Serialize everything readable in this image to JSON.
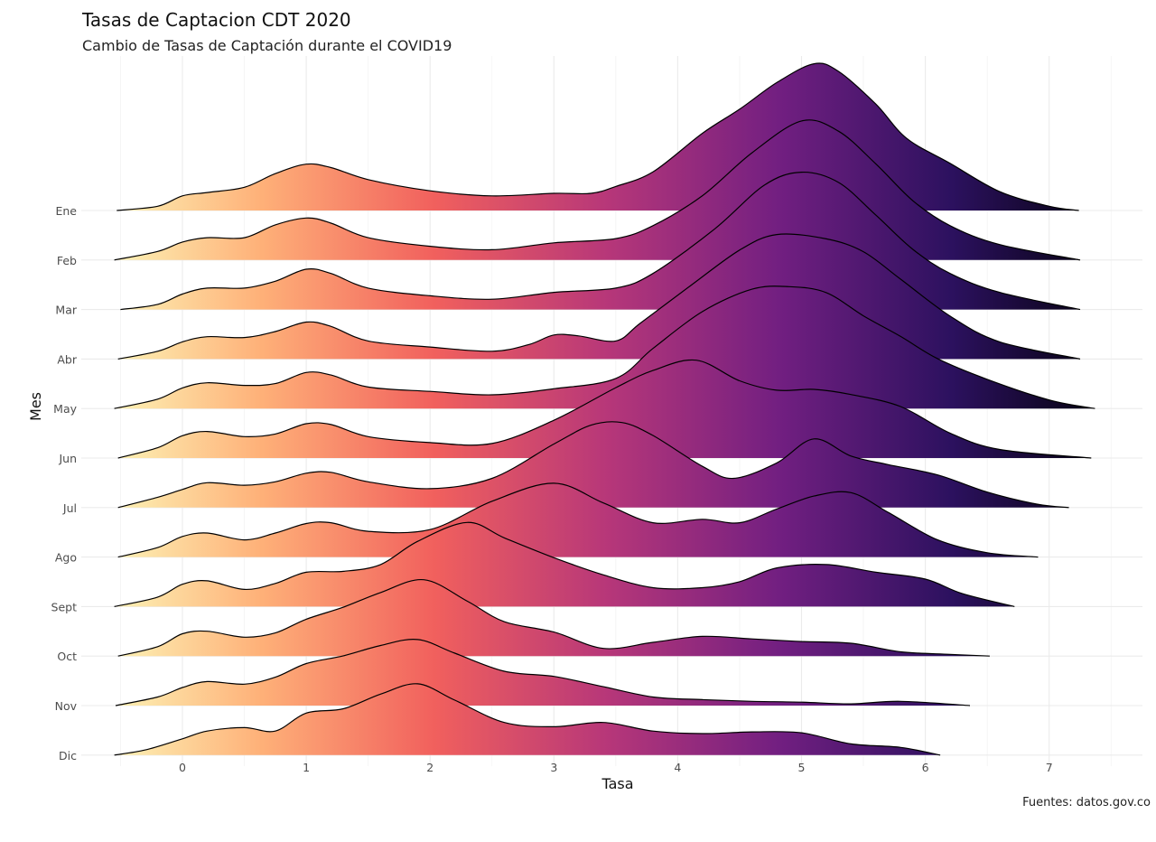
{
  "chart_data": {
    "type": "ridgeline",
    "title": "Tasas de Captacion CDT 2020",
    "subtitle": "Cambio de Tasas de Captación durante el COVID19",
    "caption": "Fuentes: datos.gov.co",
    "xlabel": "Tasa",
    "ylabel": "Mes",
    "xlim": [
      -0.75,
      7.6
    ],
    "x_ticks": [
      "0",
      "1",
      "2",
      "3",
      "4",
      "5",
      "6",
      "7"
    ],
    "grid": true,
    "fill": "gradient along x (magma palette)",
    "colors": [
      "#fcfdbf",
      "#feb078",
      "#f1605d",
      "#b73779",
      "#721f81",
      "#2c115f",
      "#000004"
    ],
    "series": [
      {
        "name": "Ene",
        "points": [
          [
            -0.53,
            0.0
          ],
          [
            -0.2,
            0.05
          ],
          [
            0.0,
            0.17
          ],
          [
            0.2,
            0.21
          ],
          [
            0.5,
            0.27
          ],
          [
            0.75,
            0.43
          ],
          [
            1.0,
            0.54
          ],
          [
            1.2,
            0.5
          ],
          [
            1.5,
            0.36
          ],
          [
            2.0,
            0.23
          ],
          [
            2.5,
            0.17
          ],
          [
            3.0,
            0.2
          ],
          [
            3.3,
            0.2
          ],
          [
            3.5,
            0.28
          ],
          [
            3.8,
            0.45
          ],
          [
            4.2,
            0.9
          ],
          [
            4.5,
            1.18
          ],
          [
            4.8,
            1.49
          ],
          [
            5.1,
            1.71
          ],
          [
            5.3,
            1.62
          ],
          [
            5.6,
            1.24
          ],
          [
            5.85,
            0.84
          ],
          [
            6.2,
            0.55
          ],
          [
            6.6,
            0.22
          ],
          [
            7.0,
            0.05
          ],
          [
            7.24,
            0.0
          ]
        ]
      },
      {
        "name": "Feb",
        "points": [
          [
            -0.55,
            0.0
          ],
          [
            -0.2,
            0.1
          ],
          [
            0.0,
            0.21
          ],
          [
            0.2,
            0.26
          ],
          [
            0.5,
            0.26
          ],
          [
            0.75,
            0.41
          ],
          [
            1.0,
            0.49
          ],
          [
            1.2,
            0.43
          ],
          [
            1.5,
            0.26
          ],
          [
            2.0,
            0.16
          ],
          [
            2.5,
            0.12
          ],
          [
            3.0,
            0.2
          ],
          [
            3.5,
            0.25
          ],
          [
            3.8,
            0.4
          ],
          [
            4.2,
            0.75
          ],
          [
            4.6,
            1.25
          ],
          [
            5.0,
            1.62
          ],
          [
            5.3,
            1.5
          ],
          [
            5.6,
            1.12
          ],
          [
            5.9,
            0.69
          ],
          [
            6.2,
            0.4
          ],
          [
            6.6,
            0.18
          ],
          [
            7.25,
            0.0
          ]
        ]
      },
      {
        "name": "Mar",
        "points": [
          [
            -0.5,
            0.0
          ],
          [
            -0.2,
            0.06
          ],
          [
            0.0,
            0.18
          ],
          [
            0.2,
            0.25
          ],
          [
            0.5,
            0.25
          ],
          [
            0.75,
            0.33
          ],
          [
            1.0,
            0.47
          ],
          [
            1.2,
            0.42
          ],
          [
            1.5,
            0.25
          ],
          [
            2.0,
            0.16
          ],
          [
            2.5,
            0.12
          ],
          [
            3.0,
            0.2
          ],
          [
            3.5,
            0.25
          ],
          [
            3.8,
            0.42
          ],
          [
            4.3,
            0.94
          ],
          [
            4.7,
            1.45
          ],
          [
            5.0,
            1.6
          ],
          [
            5.3,
            1.48
          ],
          [
            5.6,
            1.1
          ],
          [
            5.9,
            0.7
          ],
          [
            6.2,
            0.42
          ],
          [
            6.6,
            0.2
          ],
          [
            7.25,
            0.0
          ]
        ]
      },
      {
        "name": "Abr",
        "points": [
          [
            -0.52,
            0.0
          ],
          [
            -0.2,
            0.09
          ],
          [
            0.0,
            0.2
          ],
          [
            0.2,
            0.26
          ],
          [
            0.5,
            0.25
          ],
          [
            0.75,
            0.32
          ],
          [
            1.0,
            0.43
          ],
          [
            1.2,
            0.38
          ],
          [
            1.5,
            0.21
          ],
          [
            2.0,
            0.14
          ],
          [
            2.5,
            0.09
          ],
          [
            2.8,
            0.17
          ],
          [
            3.0,
            0.28
          ],
          [
            3.2,
            0.27
          ],
          [
            3.5,
            0.21
          ],
          [
            3.7,
            0.42
          ],
          [
            4.1,
            0.85
          ],
          [
            4.5,
            1.27
          ],
          [
            4.8,
            1.45
          ],
          [
            5.2,
            1.4
          ],
          [
            5.5,
            1.25
          ],
          [
            5.8,
            0.93
          ],
          [
            6.2,
            0.5
          ],
          [
            6.6,
            0.2
          ],
          [
            7.25,
            0.0
          ]
        ]
      },
      {
        "name": "May",
        "points": [
          [
            -0.55,
            0.0
          ],
          [
            -0.2,
            0.11
          ],
          [
            0.0,
            0.24
          ],
          [
            0.2,
            0.3
          ],
          [
            0.5,
            0.27
          ],
          [
            0.75,
            0.29
          ],
          [
            1.0,
            0.42
          ],
          [
            1.2,
            0.39
          ],
          [
            1.5,
            0.25
          ],
          [
            2.0,
            0.2
          ],
          [
            2.5,
            0.16
          ],
          [
            3.0,
            0.23
          ],
          [
            3.5,
            0.35
          ],
          [
            3.8,
            0.7
          ],
          [
            4.2,
            1.13
          ],
          [
            4.6,
            1.39
          ],
          [
            4.9,
            1.42
          ],
          [
            5.2,
            1.35
          ],
          [
            5.5,
            1.08
          ],
          [
            5.8,
            0.84
          ],
          [
            6.1,
            0.58
          ],
          [
            6.5,
            0.34
          ],
          [
            7.0,
            0.1
          ],
          [
            7.37,
            0.0
          ]
        ]
      },
      {
        "name": "Jun",
        "points": [
          [
            -0.52,
            0.0
          ],
          [
            -0.2,
            0.12
          ],
          [
            0.0,
            0.26
          ],
          [
            0.2,
            0.31
          ],
          [
            0.5,
            0.25
          ],
          [
            0.75,
            0.28
          ],
          [
            1.0,
            0.4
          ],
          [
            1.2,
            0.39
          ],
          [
            1.5,
            0.25
          ],
          [
            2.0,
            0.18
          ],
          [
            2.5,
            0.17
          ],
          [
            3.0,
            0.44
          ],
          [
            3.5,
            0.82
          ],
          [
            3.8,
            1.02
          ],
          [
            4.15,
            1.14
          ],
          [
            4.5,
            0.9
          ],
          [
            4.8,
            0.79
          ],
          [
            5.1,
            0.8
          ],
          [
            5.4,
            0.74
          ],
          [
            5.8,
            0.6
          ],
          [
            6.2,
            0.29
          ],
          [
            6.6,
            0.1
          ],
          [
            7.34,
            0.0
          ]
        ]
      },
      {
        "name": "Jul",
        "points": [
          [
            -0.52,
            0.0
          ],
          [
            -0.2,
            0.12
          ],
          [
            0.0,
            0.21
          ],
          [
            0.2,
            0.29
          ],
          [
            0.5,
            0.26
          ],
          [
            0.75,
            0.3
          ],
          [
            1.0,
            0.4
          ],
          [
            1.2,
            0.41
          ],
          [
            1.5,
            0.3
          ],
          [
            2.0,
            0.22
          ],
          [
            2.5,
            0.34
          ],
          [
            3.0,
            0.74
          ],
          [
            3.3,
            0.96
          ],
          [
            3.55,
            0.99
          ],
          [
            3.8,
            0.84
          ],
          [
            4.2,
            0.48
          ],
          [
            4.45,
            0.34
          ],
          [
            4.8,
            0.52
          ],
          [
            5.1,
            0.8
          ],
          [
            5.4,
            0.6
          ],
          [
            5.7,
            0.5
          ],
          [
            6.1,
            0.38
          ],
          [
            6.5,
            0.18
          ],
          [
            6.9,
            0.04
          ],
          [
            7.16,
            0.0
          ]
        ]
      },
      {
        "name": "Ago",
        "points": [
          [
            -0.52,
            0.0
          ],
          [
            -0.2,
            0.11
          ],
          [
            0.0,
            0.24
          ],
          [
            0.2,
            0.28
          ],
          [
            0.5,
            0.2
          ],
          [
            0.75,
            0.28
          ],
          [
            1.0,
            0.39
          ],
          [
            1.2,
            0.4
          ],
          [
            1.5,
            0.3
          ],
          [
            2.0,
            0.32
          ],
          [
            2.5,
            0.65
          ],
          [
            3.0,
            0.86
          ],
          [
            3.4,
            0.63
          ],
          [
            3.8,
            0.4
          ],
          [
            4.2,
            0.44
          ],
          [
            4.5,
            0.4
          ],
          [
            4.8,
            0.56
          ],
          [
            5.1,
            0.71
          ],
          [
            5.4,
            0.75
          ],
          [
            5.7,
            0.52
          ],
          [
            6.1,
            0.2
          ],
          [
            6.5,
            0.05
          ],
          [
            6.91,
            0.0
          ]
        ]
      },
      {
        "name": "Sept",
        "points": [
          [
            -0.55,
            0.0
          ],
          [
            -0.2,
            0.11
          ],
          [
            0.0,
            0.26
          ],
          [
            0.2,
            0.3
          ],
          [
            0.5,
            0.2
          ],
          [
            0.75,
            0.27
          ],
          [
            1.0,
            0.4
          ],
          [
            1.3,
            0.41
          ],
          [
            1.6,
            0.49
          ],
          [
            1.9,
            0.76
          ],
          [
            2.3,
            0.98
          ],
          [
            2.6,
            0.8
          ],
          [
            3.0,
            0.57
          ],
          [
            3.4,
            0.37
          ],
          [
            3.8,
            0.22
          ],
          [
            4.2,
            0.22
          ],
          [
            4.5,
            0.29
          ],
          [
            4.8,
            0.45
          ],
          [
            5.2,
            0.49
          ],
          [
            5.6,
            0.4
          ],
          [
            6.0,
            0.32
          ],
          [
            6.3,
            0.15
          ],
          [
            6.72,
            0.0
          ]
        ]
      },
      {
        "name": "Oct",
        "points": [
          [
            -0.52,
            0.0
          ],
          [
            -0.2,
            0.11
          ],
          [
            0.0,
            0.26
          ],
          [
            0.2,
            0.29
          ],
          [
            0.5,
            0.22
          ],
          [
            0.75,
            0.27
          ],
          [
            1.0,
            0.43
          ],
          [
            1.3,
            0.57
          ],
          [
            1.6,
            0.74
          ],
          [
            1.95,
            0.89
          ],
          [
            2.3,
            0.64
          ],
          [
            2.6,
            0.4
          ],
          [
            3.0,
            0.28
          ],
          [
            3.4,
            0.09
          ],
          [
            3.8,
            0.16
          ],
          [
            4.2,
            0.23
          ],
          [
            4.6,
            0.2
          ],
          [
            5.0,
            0.17
          ],
          [
            5.4,
            0.15
          ],
          [
            5.8,
            0.05
          ],
          [
            6.2,
            0.02
          ],
          [
            6.52,
            0.0
          ]
        ]
      },
      {
        "name": "Nov",
        "points": [
          [
            -0.54,
            0.0
          ],
          [
            -0.2,
            0.1
          ],
          [
            0.0,
            0.21
          ],
          [
            0.2,
            0.28
          ],
          [
            0.5,
            0.25
          ],
          [
            0.75,
            0.33
          ],
          [
            1.0,
            0.49
          ],
          [
            1.3,
            0.58
          ],
          [
            1.6,
            0.7
          ],
          [
            1.9,
            0.77
          ],
          [
            2.2,
            0.61
          ],
          [
            2.6,
            0.4
          ],
          [
            3.0,
            0.34
          ],
          [
            3.4,
            0.22
          ],
          [
            3.8,
            0.1
          ],
          [
            4.2,
            0.07
          ],
          [
            4.6,
            0.05
          ],
          [
            5.0,
            0.04
          ],
          [
            5.4,
            0.02
          ],
          [
            5.8,
            0.05
          ],
          [
            6.36,
            0.0
          ]
        ]
      },
      {
        "name": "Dic",
        "points": [
          [
            -0.55,
            0.0
          ],
          [
            -0.3,
            0.06
          ],
          [
            0.0,
            0.19
          ],
          [
            0.2,
            0.28
          ],
          [
            0.5,
            0.32
          ],
          [
            0.75,
            0.28
          ],
          [
            1.0,
            0.49
          ],
          [
            1.3,
            0.54
          ],
          [
            1.6,
            0.71
          ],
          [
            1.9,
            0.83
          ],
          [
            2.2,
            0.64
          ],
          [
            2.6,
            0.38
          ],
          [
            3.0,
            0.33
          ],
          [
            3.4,
            0.38
          ],
          [
            3.8,
            0.28
          ],
          [
            4.2,
            0.25
          ],
          [
            4.6,
            0.27
          ],
          [
            5.0,
            0.26
          ],
          [
            5.4,
            0.13
          ],
          [
            5.8,
            0.09
          ],
          [
            6.12,
            0.0
          ]
        ]
      }
    ]
  }
}
